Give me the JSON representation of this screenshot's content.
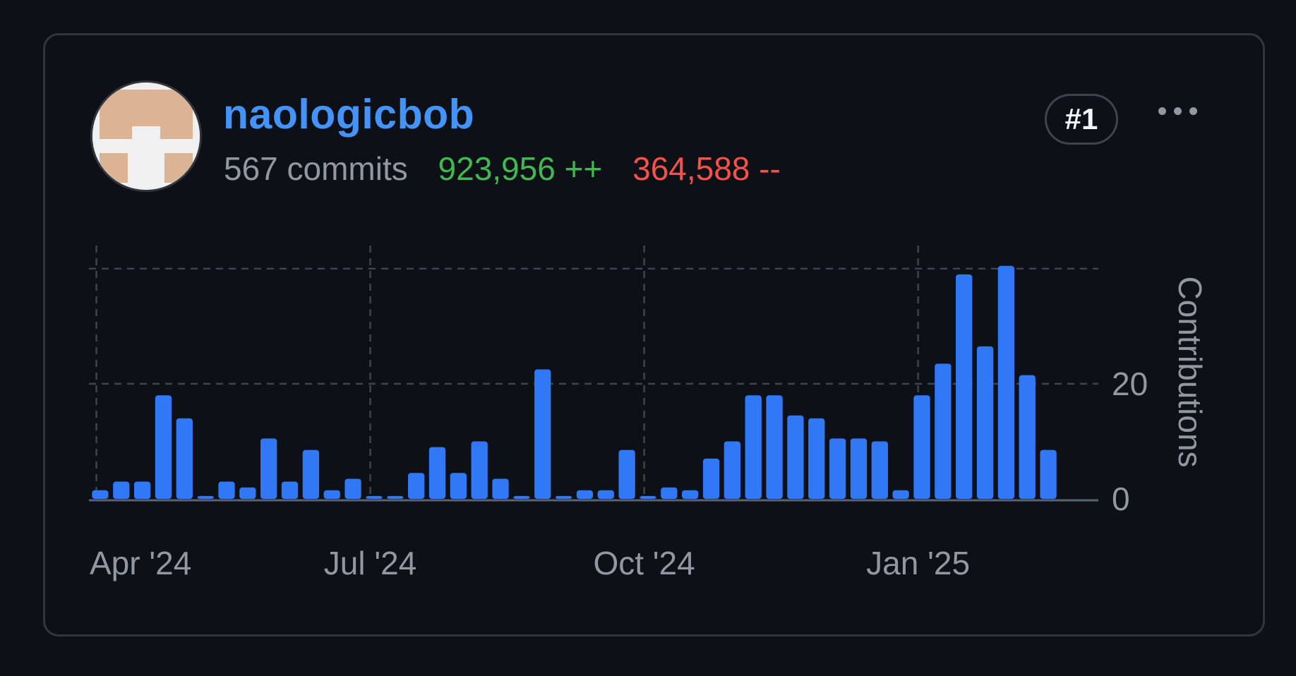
{
  "user": {
    "username": "naologicbob",
    "commits": "567 commits",
    "additions": "923,956 ++",
    "deletions": "364,588 --",
    "rank": "#1"
  },
  "icons": {
    "avatar": "identicon-avatar",
    "more": "kebab-horizontal-icon"
  },
  "colors": {
    "bar": "#3178f6",
    "additions": "#3fb950",
    "deletions": "#f85149",
    "link": "#4493f8"
  },
  "chart_data": {
    "type": "bar",
    "title": "",
    "xlabel": "",
    "ylabel": "Contributions",
    "ylim": [
      0,
      45
    ],
    "y_ticks": [
      0,
      20
    ],
    "y_ticks_unlabeled": [
      20,
      40
    ],
    "x_tick_labels": [
      "Apr '24",
      "Jul '24",
      "Oct '24",
      "Jan '25"
    ],
    "grid": true,
    "series": [
      {
        "values": [
          1.5,
          3,
          3,
          18,
          14,
          0.5,
          3,
          2,
          10.5,
          3,
          8.5,
          1.5,
          3.5,
          0.5,
          0.5,
          4.5,
          9,
          4.5,
          10,
          3.5,
          0.5,
          22.5,
          0.5,
          1.5,
          1.5,
          8.5,
          0.5,
          2,
          1.5,
          7,
          10,
          18,
          18,
          14.5,
          14,
          10.5,
          10.5,
          10,
          1.5,
          18,
          23.5,
          39,
          26.5,
          40.5,
          21.5,
          8.5
        ]
      }
    ]
  }
}
